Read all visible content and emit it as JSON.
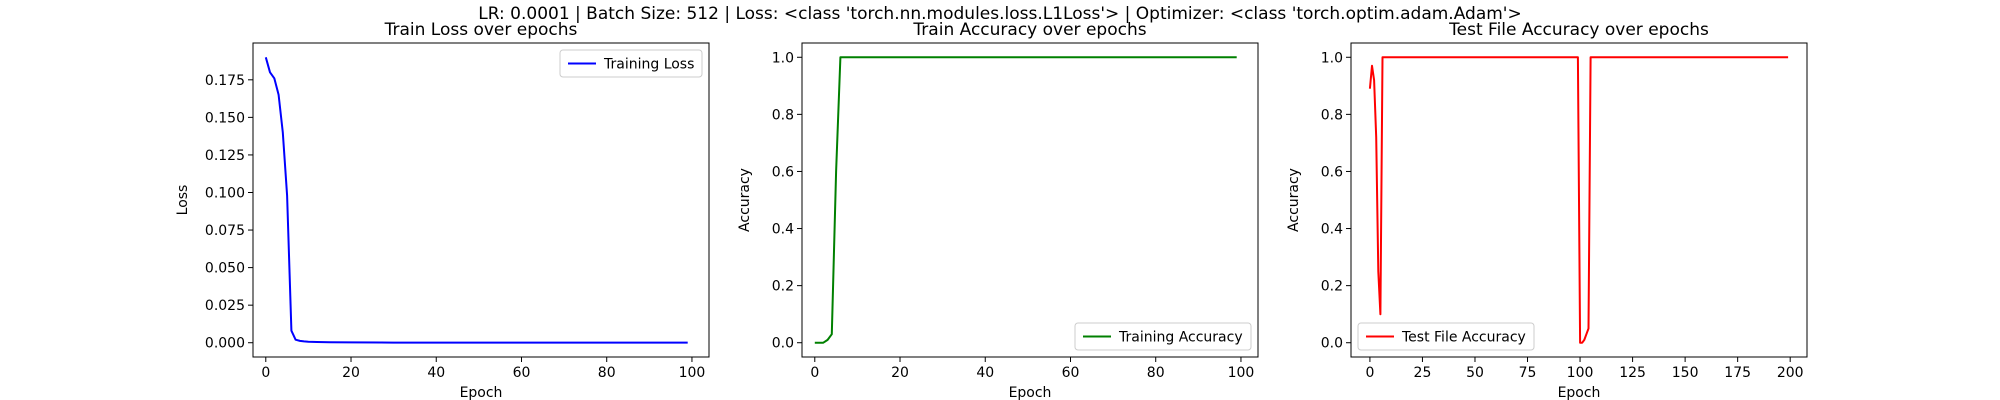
{
  "suptitle": "LR: 0.0001 | Batch Size: 512 | Loss: <class 'torch.nn.modules.loss.L1Loss'> | Optimizer: <class 'torch.optim.adam.Adam'>",
  "chart_data": [
    {
      "type": "line",
      "title": "Train Loss over epochs",
      "xlabel": "Epoch",
      "ylabel": "Loss",
      "xlim": [
        -3,
        104
      ],
      "ylim": [
        -0.0095,
        0.1995
      ],
      "xticks": [
        0,
        20,
        40,
        60,
        80,
        100
      ],
      "yticks": [
        0.0,
        0.025,
        0.05,
        0.075,
        0.1,
        0.125,
        0.15,
        0.175
      ],
      "ytick_labels": [
        "0.000",
        "0.025",
        "0.050",
        "0.075",
        "0.100",
        "0.125",
        "0.150",
        "0.175"
      ],
      "legend_position": "upper right",
      "grid": false,
      "series": [
        {
          "name": "Training Loss",
          "color": "#0000ff",
          "x": [
            0,
            1,
            2,
            3,
            4,
            5,
            6,
            7,
            8,
            9,
            10,
            12,
            15,
            20,
            30,
            40,
            50,
            60,
            70,
            80,
            90,
            99
          ],
          "y": [
            0.19,
            0.18,
            0.176,
            0.165,
            0.14,
            0.098,
            0.008,
            0.002,
            0.0012,
            0.0009,
            0.0007,
            0.0005,
            0.0003,
            0.0002,
            0.0001,
            0.0001,
            0.0001,
            0.0001,
            0.0001,
            0.0001,
            0.0001,
            0.0001
          ]
        }
      ]
    },
    {
      "type": "line",
      "title": "Train Accuracy over epochs",
      "xlabel": "Epoch",
      "ylabel": "Accuracy",
      "xlim": [
        -3,
        104
      ],
      "ylim": [
        -0.05,
        1.05
      ],
      "xticks": [
        0,
        20,
        40,
        60,
        80,
        100
      ],
      "yticks": [
        0.0,
        0.2,
        0.4,
        0.6,
        0.8,
        1.0
      ],
      "ytick_labels": [
        "0.0",
        "0.2",
        "0.4",
        "0.6",
        "0.8",
        "1.0"
      ],
      "legend_position": "lower right",
      "grid": false,
      "series": [
        {
          "name": "Training Accuracy",
          "color": "#008000",
          "x": [
            0,
            1,
            2,
            3,
            4,
            5,
            6,
            7,
            10,
            20,
            40,
            60,
            80,
            99
          ],
          "y": [
            0.0,
            0.0,
            0.0,
            0.01,
            0.03,
            0.6,
            1.0,
            1.0,
            1.0,
            1.0,
            1.0,
            1.0,
            1.0,
            1.0
          ]
        }
      ]
    },
    {
      "type": "line",
      "title": "Test File Accuracy over epochs",
      "xlabel": "Epoch",
      "ylabel": "Accuracy",
      "xlim": [
        -9,
        208
      ],
      "ylim": [
        -0.05,
        1.05
      ],
      "xticks": [
        0,
        25,
        50,
        75,
        100,
        125,
        150,
        175,
        200
      ],
      "yticks": [
        0.0,
        0.2,
        0.4,
        0.6,
        0.8,
        1.0
      ],
      "ytick_labels": [
        "0.0",
        "0.2",
        "0.4",
        "0.6",
        "0.8",
        "1.0"
      ],
      "legend_position": "lower left",
      "grid": false,
      "series": [
        {
          "name": "Test File Accuracy",
          "color": "#ff0000",
          "x": [
            0,
            1,
            2,
            3,
            4,
            5,
            6,
            10,
            50,
            99,
            100,
            101,
            102,
            103,
            104,
            105,
            106,
            110,
            150,
            199
          ],
          "y": [
            0.89,
            0.97,
            0.92,
            0.72,
            0.25,
            0.1,
            1.0,
            1.0,
            1.0,
            1.0,
            0.0,
            0.0,
            0.01,
            0.03,
            0.05,
            1.0,
            1.0,
            1.0,
            1.0,
            1.0
          ]
        }
      ]
    }
  ]
}
